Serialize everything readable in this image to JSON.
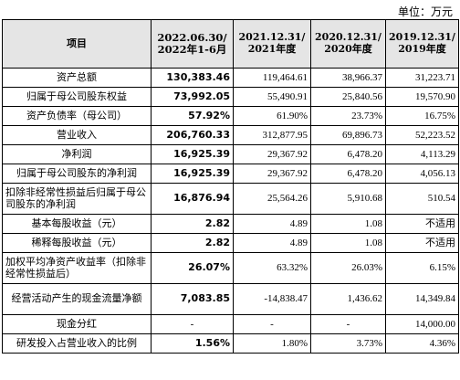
{
  "unit_label": "单位：万元",
  "headers": {
    "item": "项目",
    "c1": "2022.06.30/ 2022年1-6月",
    "c2": "2021.12.31/ 2021年度",
    "c3": "2020.12.31/ 2020年度",
    "c4": "2019.12.31/ 2019年度"
  },
  "rows": [
    {
      "label": "资产总额",
      "v": [
        "130,383.46",
        "119,464.61",
        "38,966.37",
        "31,223.71"
      ]
    },
    {
      "label": "归属于母公司股东权益",
      "v": [
        "73,992.05",
        "55,490.91",
        "25,840.56",
        "19,570.90"
      ]
    },
    {
      "label": "资产负债率（母公司）",
      "v": [
        "57.92%",
        "61.90%",
        "23.73%",
        "16.75%"
      ]
    },
    {
      "label": "营业收入",
      "v": [
        "206,760.33",
        "312,877.95",
        "69,896.73",
        "52,223.52"
      ]
    },
    {
      "label": "净利润",
      "v": [
        "16,925.39",
        "29,367.92",
        "6,478.20",
        "4,113.29"
      ]
    },
    {
      "label": "归属于母公司股东的净利润",
      "v": [
        "16,925.39",
        "29,367.92",
        "6,478.20",
        "4,056.13"
      ]
    },
    {
      "label": "扣除非经常性损益后归属于母公司股东的净利润",
      "v": [
        "16,876.94",
        "25,564.26",
        "5,910.68",
        "510.54"
      ]
    },
    {
      "label": "基本每股收益（元）",
      "v": [
        "2.82",
        "4.89",
        "1.08",
        "不适用"
      ]
    },
    {
      "label": "稀释每股收益（元）",
      "v": [
        "2.82",
        "4.89",
        "1.08",
        "不适用"
      ]
    },
    {
      "label": "加权平均净资产收益率（扣除非经常性损益后）",
      "v": [
        "26.07%",
        "63.32%",
        "26.03%",
        "6.15%"
      ]
    },
    {
      "label": "经营活动产生的现金流量净额",
      "v": [
        "7,083.85",
        "-14,838.47",
        "1,436.62",
        "14,349.84"
      ]
    },
    {
      "label": "现金分红",
      "v": [
        "-",
        "-",
        "-",
        "14,000.00"
      ]
    },
    {
      "label": "研发投入占营业收入的比例",
      "v": [
        "1.56%",
        "1.80%",
        "3.73%",
        "4.36%"
      ]
    }
  ]
}
